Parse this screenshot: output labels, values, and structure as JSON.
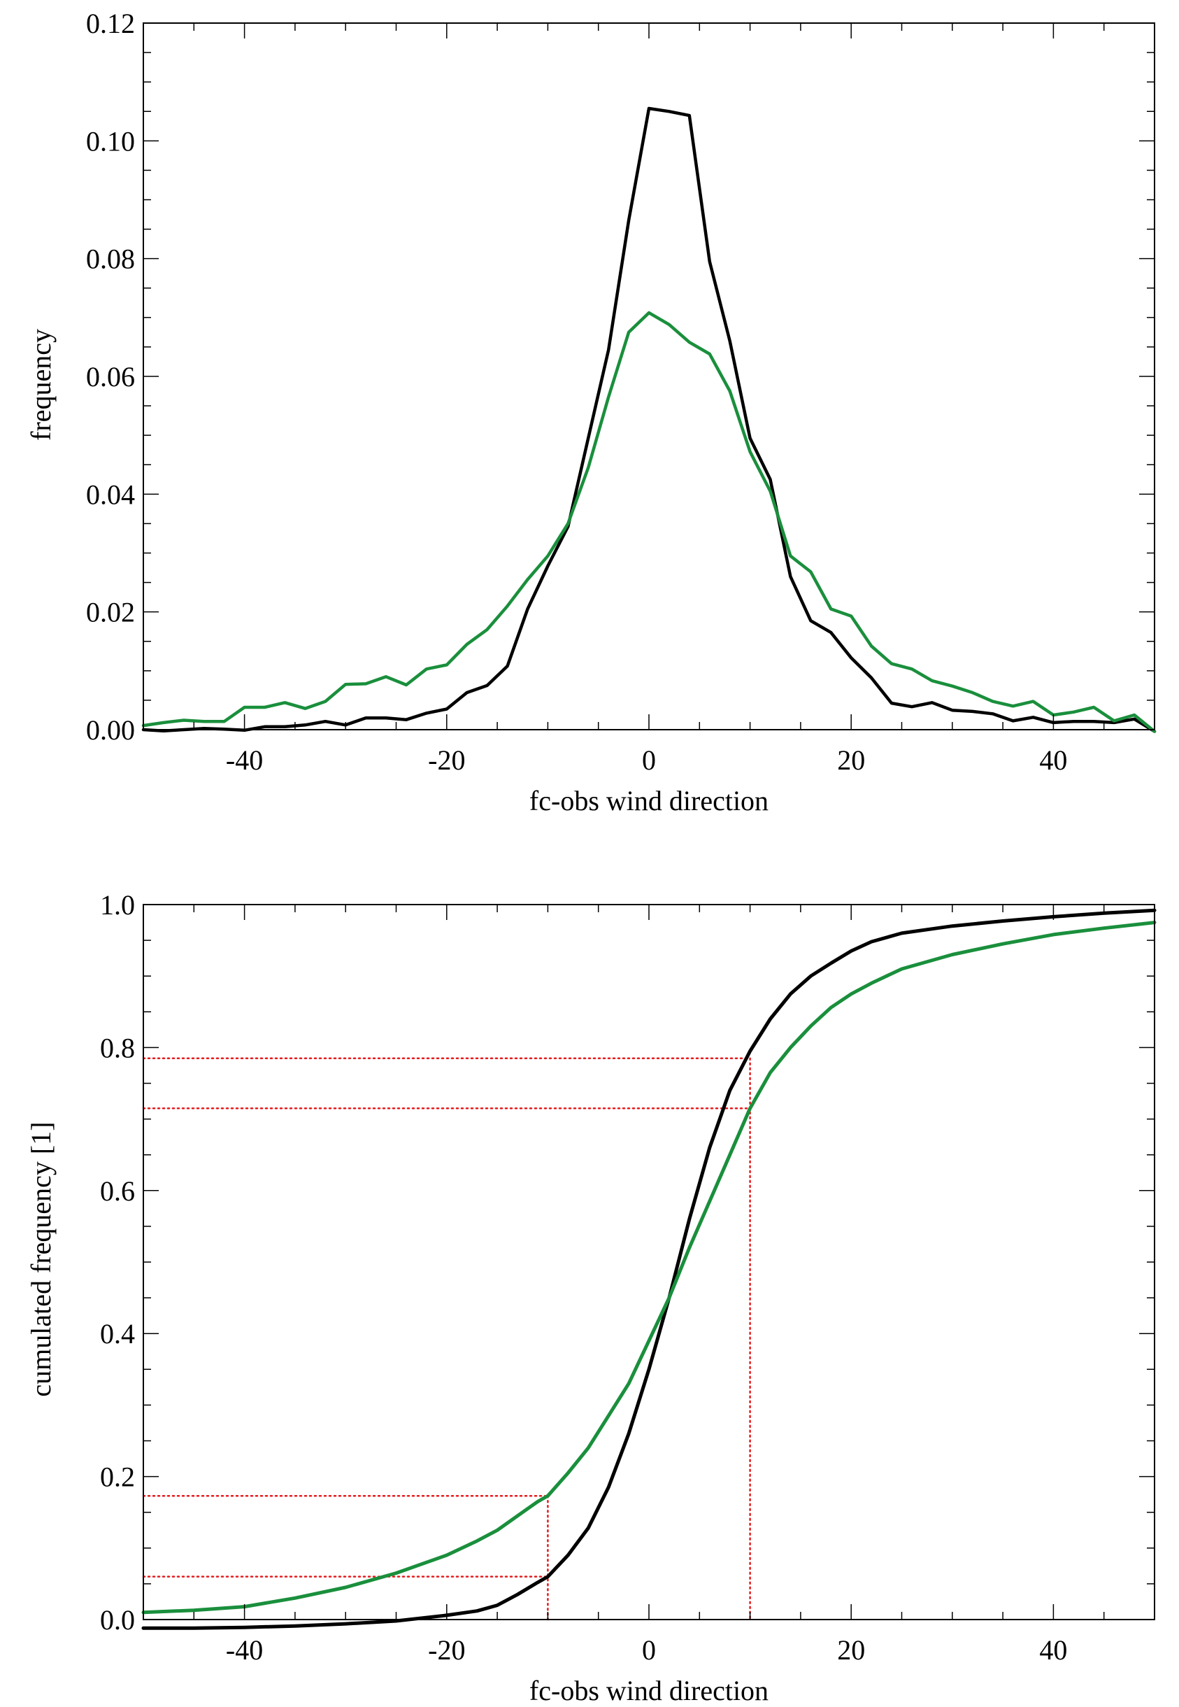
{
  "colors": {
    "series_black": "#000000",
    "series_green": "#1a8f3c",
    "reference_lines": "#e41a1c"
  },
  "chart_data": [
    {
      "type": "line",
      "title": "",
      "xlabel": "fc-obs wind direction",
      "ylabel": "frequency",
      "xlim": [
        -50,
        50
      ],
      "ylim": [
        0,
        0.12
      ],
      "x_ticks": [
        -40,
        -20,
        0,
        20,
        40
      ],
      "x_tick_labels": [
        "-40",
        "-20",
        "0",
        "20",
        "40"
      ],
      "y_ticks": [
        0,
        0.02,
        0.04,
        0.06,
        0.08,
        0.1,
        0.12
      ],
      "y_tick_labels": [
        "0.00",
        "0.02",
        "0.04",
        "0.06",
        "0.08",
        "0.10",
        "0.12"
      ],
      "grid": false,
      "legend": null,
      "series": [
        {
          "name": "black",
          "color": "#000000",
          "x": [
            -50,
            -48,
            -46,
            -44,
            -42,
            -40,
            -38,
            -36,
            -34,
            -32,
            -30,
            -28,
            -26,
            -24,
            -22,
            -20,
            -18,
            -16,
            -14,
            -12,
            -10,
            -8,
            -6,
            -4,
            -2,
            0,
            2,
            4,
            6,
            8,
            10,
            12,
            14,
            16,
            18,
            20,
            22,
            24,
            26,
            28,
            30,
            32,
            34,
            36,
            38,
            40,
            42,
            44,
            46,
            48,
            50
          ],
          "y": [
            0.0,
            -0.0002,
            0.0,
            0.0002,
            0.0001,
            -0.0001,
            0.0005,
            0.0005,
            0.0008,
            0.0014,
            0.0008,
            0.002,
            0.002,
            0.0017,
            0.0028,
            0.0035,
            0.0063,
            0.0075,
            0.0108,
            0.0205,
            0.0278,
            0.0345,
            0.0495,
            0.0645,
            0.0865,
            0.1055,
            0.105,
            0.1043,
            0.0795,
            0.066,
            0.0495,
            0.0425,
            0.026,
            0.0185,
            0.0165,
            0.0122,
            0.0088,
            0.0045,
            0.0039,
            0.0046,
            0.0033,
            0.0031,
            0.0027,
            0.0015,
            0.0021,
            0.0012,
            0.0014,
            0.0014,
            0.0012,
            0.0018,
            -0.0003
          ]
        },
        {
          "name": "green",
          "color": "#1a8f3c",
          "x": [
            -50,
            -48,
            -46,
            -44,
            -42,
            -40,
            -38,
            -36,
            -34,
            -32,
            -30,
            -28,
            -26,
            -24,
            -22,
            -20,
            -18,
            -16,
            -14,
            -12,
            -10,
            -8,
            -6,
            -4,
            -2,
            0,
            2,
            4,
            6,
            8,
            10,
            12,
            14,
            16,
            18,
            20,
            22,
            24,
            26,
            28,
            30,
            32,
            34,
            36,
            38,
            40,
            42,
            44,
            46,
            48,
            50
          ],
          "y": [
            0.0007,
            0.0012,
            0.0016,
            0.0014,
            0.0014,
            0.0038,
            0.0038,
            0.0046,
            0.0036,
            0.0048,
            0.0077,
            0.0078,
            0.009,
            0.0076,
            0.0103,
            0.011,
            0.0145,
            0.017,
            0.021,
            0.0255,
            0.0295,
            0.035,
            0.0445,
            0.0565,
            0.0675,
            0.0708,
            0.0688,
            0.0658,
            0.0638,
            0.0575,
            0.0472,
            0.0405,
            0.0295,
            0.0268,
            0.0205,
            0.0193,
            0.0142,
            0.0112,
            0.0103,
            0.0083,
            0.0074,
            0.0063,
            0.0048,
            0.004,
            0.0048,
            0.0025,
            0.003,
            0.0038,
            0.0015,
            0.0025,
            -0.0003
          ]
        }
      ]
    },
    {
      "type": "line",
      "title": "",
      "xlabel": "fc-obs wind direction",
      "ylabel": "cumulated frequency [1]",
      "xlim": [
        -50,
        50
      ],
      "ylim": [
        0,
        1.0
      ],
      "x_ticks": [
        -40,
        -20,
        0,
        20,
        40
      ],
      "x_tick_labels": [
        "-40",
        "-20",
        "0",
        "20",
        "40"
      ],
      "y_ticks": [
        0,
        0.2,
        0.4,
        0.6,
        0.8,
        1.0
      ],
      "y_tick_labels": [
        "0.0",
        "0.2",
        "0.4",
        "0.6",
        "0.8",
        "1.0"
      ],
      "grid": false,
      "legend": null,
      "series": [
        {
          "name": "black",
          "color": "#000000",
          "x": [
            -50,
            -45,
            -40,
            -35,
            -30,
            -25,
            -20,
            -17,
            -15,
            -13,
            -11,
            -10,
            -8,
            -6,
            -4,
            -2,
            0,
            2,
            4,
            6,
            8,
            10,
            12,
            14,
            16,
            18,
            20,
            22,
            25,
            30,
            35,
            40,
            45,
            50
          ],
          "y": [
            -0.012,
            -0.012,
            -0.011,
            -0.009,
            -0.006,
            -0.002,
            0.006,
            0.012,
            0.02,
            0.035,
            0.052,
            0.06,
            0.09,
            0.128,
            0.185,
            0.26,
            0.35,
            0.45,
            0.56,
            0.66,
            0.74,
            0.795,
            0.84,
            0.875,
            0.9,
            0.918,
            0.935,
            0.948,
            0.96,
            0.97,
            0.977,
            0.983,
            0.988,
            0.992
          ]
        },
        {
          "name": "green",
          "color": "#1a8f3c",
          "x": [
            -50,
            -45,
            -40,
            -35,
            -30,
            -25,
            -20,
            -17,
            -15,
            -13,
            -11,
            -10,
            -8,
            -6,
            -4,
            -2,
            0,
            2,
            4,
            6,
            8,
            10,
            12,
            14,
            16,
            18,
            20,
            22,
            25,
            30,
            35,
            40,
            45,
            50
          ],
          "y": [
            0.01,
            0.013,
            0.018,
            0.03,
            0.045,
            0.065,
            0.09,
            0.11,
            0.125,
            0.145,
            0.165,
            0.173,
            0.205,
            0.24,
            0.285,
            0.33,
            0.39,
            0.45,
            0.52,
            0.585,
            0.65,
            0.715,
            0.765,
            0.8,
            0.83,
            0.856,
            0.875,
            0.89,
            0.91,
            0.93,
            0.945,
            0.958,
            0.967,
            0.975
          ]
        }
      ],
      "reference_lines": [
        {
          "from": [
            -50,
            0.785
          ],
          "to": [
            10,
            0.785
          ]
        },
        {
          "from": [
            -50,
            0.715
          ],
          "to": [
            10,
            0.715
          ]
        },
        {
          "from": [
            10,
            0.785
          ],
          "to": [
            10,
            0.0
          ]
        },
        {
          "from": [
            -50,
            0.173
          ],
          "to": [
            -10,
            0.173
          ]
        },
        {
          "from": [
            -50,
            0.06
          ],
          "to": [
            -10,
            0.06
          ]
        },
        {
          "from": [
            -10,
            0.173
          ],
          "to": [
            -10,
            0.0
          ]
        }
      ]
    }
  ]
}
